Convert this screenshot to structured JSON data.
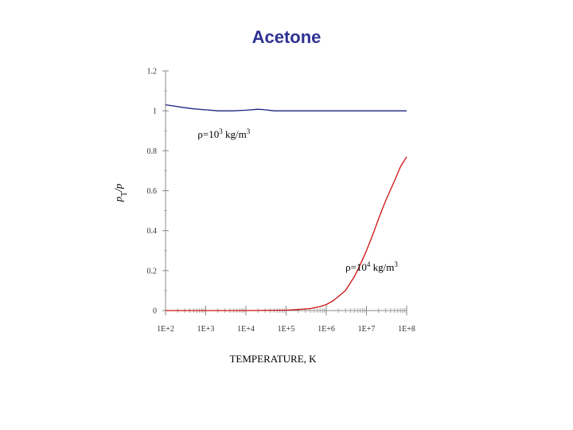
{
  "title": "Acetone",
  "chart_data": {
    "type": "line",
    "title": "Acetone",
    "xlabel": "TEMPERATURE, K",
    "ylabel_base": "p",
    "ylabel_sub": "T",
    "ylabel_tail": "/p",
    "x_scale": "log",
    "xlim": [
      100,
      100000000
    ],
    "ylim": [
      0,
      1.2
    ],
    "x_ticks": [
      100,
      1000,
      10000,
      100000,
      1000000,
      10000000,
      100000000
    ],
    "x_tick_labels": [
      "1E+2",
      "1E+3",
      "1E+4",
      "1E+5",
      "1E+6",
      "1E+7",
      "1E+8"
    ],
    "y_ticks": [
      0,
      0.2,
      0.4,
      0.6,
      0.8,
      1,
      1.2
    ],
    "y_tick_labels": [
      "0",
      "0.2",
      "0.4",
      "0.6",
      "0.8",
      "1",
      "1.2"
    ],
    "series": [
      {
        "color": "#1a237e",
        "x": [
          100,
          150,
          250,
          500,
          1000,
          2000,
          5000,
          10000,
          20000,
          30000,
          50000,
          100000,
          1000000,
          10000000,
          100000000
        ],
        "y": [
          1.03,
          1.025,
          1.018,
          1.01,
          1.005,
          1.0,
          1.0,
          1.003,
          1.008,
          1.005,
          1.0,
          1.0,
          1.0,
          1.0,
          1.0
        ]
      },
      {
        "color": "#cc1111",
        "x": [
          100,
          1000,
          10000,
          100000,
          200000,
          400000,
          700000,
          1000000,
          1500000,
          2000000,
          3000000,
          5000000,
          7000000,
          10000000,
          15000000,
          20000000,
          30000000,
          50000000,
          70000000,
          100000000
        ],
        "y": [
          0,
          0,
          0,
          0.002,
          0.005,
          0.01,
          0.02,
          0.03,
          0.05,
          0.07,
          0.1,
          0.17,
          0.23,
          0.3,
          0.39,
          0.46,
          0.55,
          0.65,
          0.72,
          0.77
        ]
      }
    ],
    "annotations": [
      {
        "pre": "ρ=10",
        "sup": "3",
        "post": " kg/m",
        "sup2": "3",
        "at_x": 631,
        "at_y": 0.865
      },
      {
        "pre": "ρ=10",
        "sup": "4",
        "post": " kg/m",
        "sup2": "3",
        "at_x": 3000000,
        "at_y": 0.2
      }
    ]
  }
}
